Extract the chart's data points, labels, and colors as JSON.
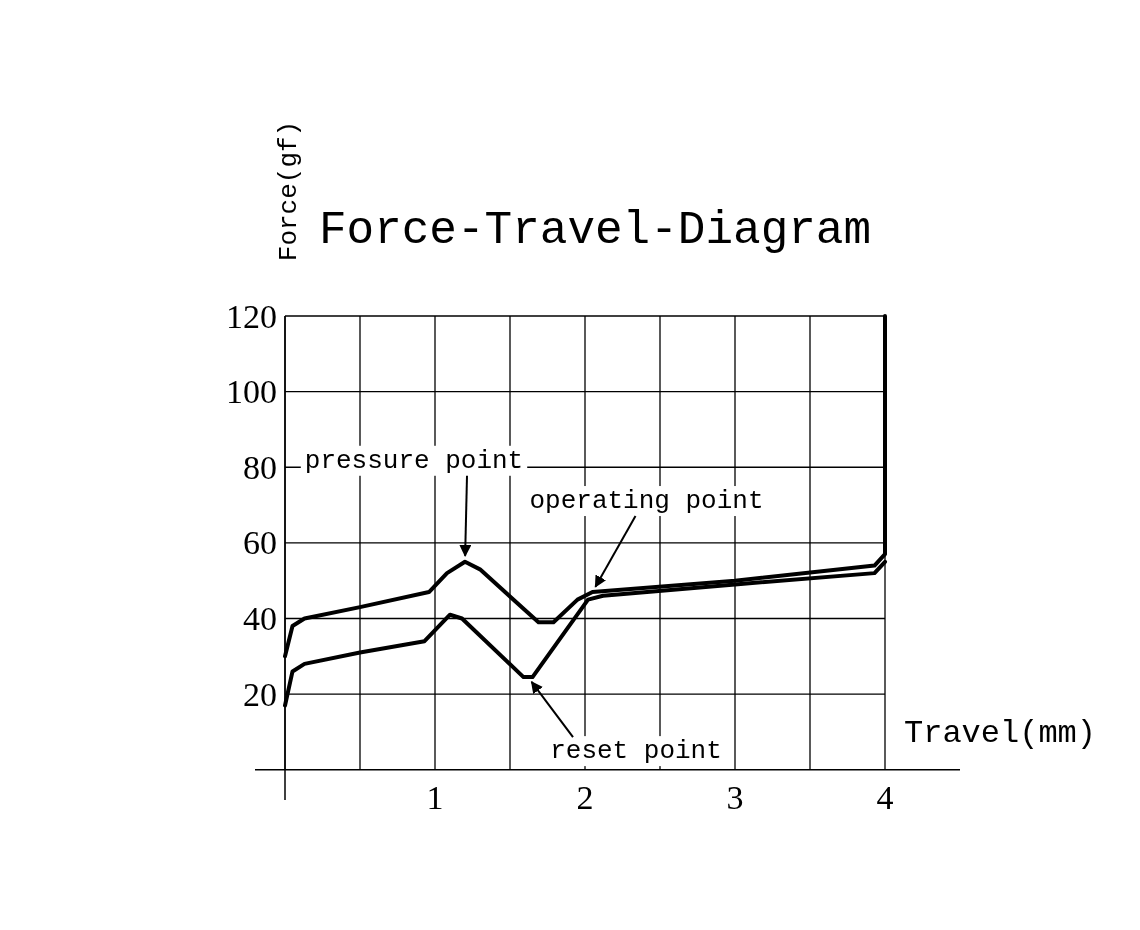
{
  "chart_data": {
    "type": "line",
    "title": "Force-Travel-Diagram",
    "xlabel": "Travel(mm)",
    "ylabel": "Force(gf)",
    "xlim": [
      -0.2,
      4.5
    ],
    "ylim": [
      -8,
      120
    ],
    "xticks": [
      {
        "value": 0,
        "label": null
      },
      {
        "value": 0.5,
        "label": null
      },
      1,
      {
        "value": 1.5,
        "label": null
      },
      2,
      {
        "value": 2.5,
        "label": null
      },
      3,
      {
        "value": 3.5,
        "label": null
      },
      4
    ],
    "yticks": [
      20,
      40,
      60,
      80,
      100,
      120
    ],
    "grid": true,
    "marker": "none",
    "line_style": "solid",
    "series": [
      {
        "color": "#000000",
        "x": [
          0,
          0.05,
          0.13,
          0.5,
          0.96,
          1.08,
          1.2,
          1.3,
          1.69,
          1.79,
          1.95,
          2.05,
          3.0,
          3.93,
          4.0,
          4.0
        ],
        "values": [
          30,
          38,
          40,
          43,
          47,
          52,
          55,
          53,
          39,
          39,
          45,
          47,
          50,
          54,
          57,
          120
        ]
      },
      {
        "color": "#000000",
        "x": [
          0,
          0.05,
          0.13,
          0.5,
          0.93,
          1.1,
          1.18,
          1.59,
          1.65,
          2.02,
          2.12,
          3.0,
          3.93,
          4.0
        ],
        "values": [
          17,
          26,
          28,
          31,
          34,
          41,
          40,
          24.5,
          24.5,
          45,
          46,
          49,
          52,
          55
        ]
      }
    ],
    "annotations": [
      {
        "text": "pressure point",
        "x": 1.2,
        "y": 55
      },
      {
        "text": "operating point",
        "x": 2.05,
        "y": 47
      },
      {
        "text": "reset point",
        "x": 1.62,
        "y": 24.5
      }
    ]
  }
}
